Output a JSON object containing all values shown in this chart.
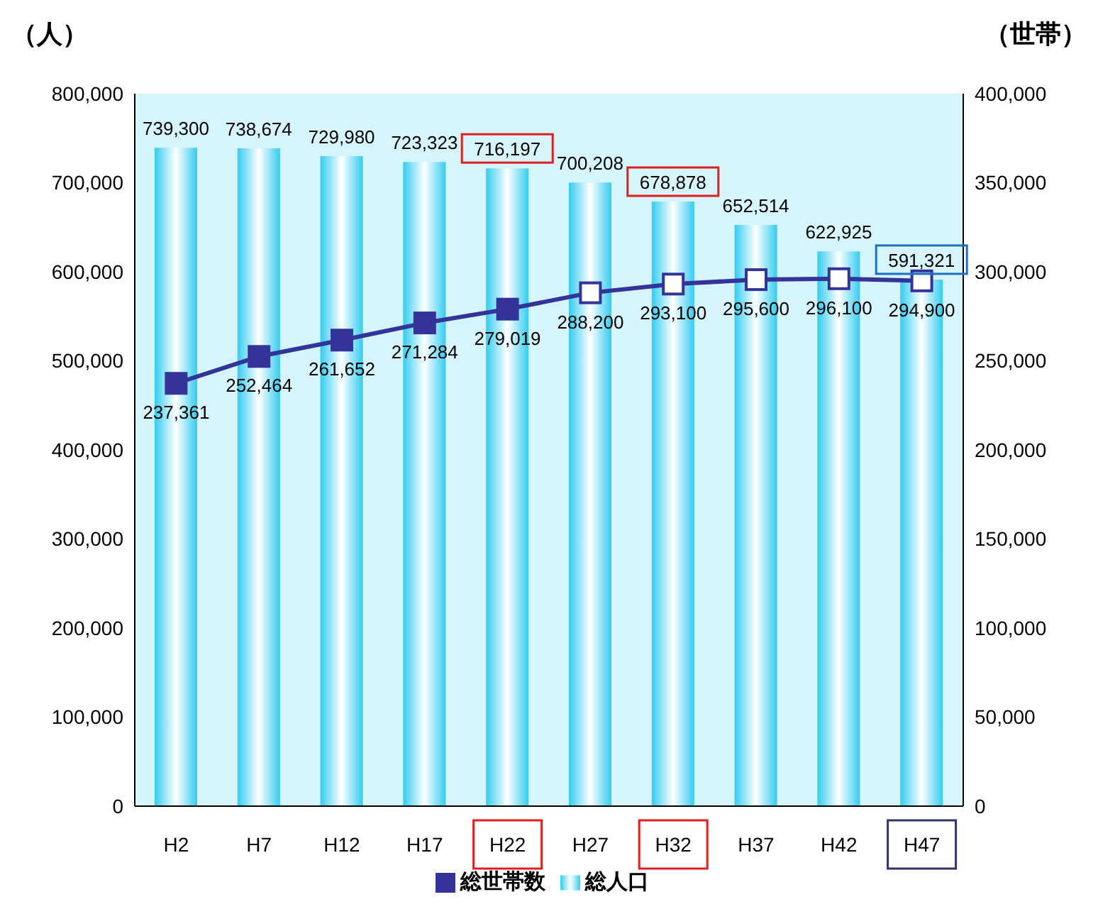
{
  "chart_data": {
    "type": "bar",
    "ylabel": "（人）",
    "y2label": "（世帯）",
    "categories": [
      "H2",
      "H7",
      "H12",
      "H17",
      "H22",
      "H27",
      "H32",
      "H37",
      "H42",
      "H47"
    ],
    "series": [
      {
        "name": "総人口",
        "color": "#33ccf0",
        "values": [
          739300,
          738674,
          729980,
          723323,
          716197,
          700208,
          678878,
          652514,
          622925,
          591321
        ],
        "value_labels": [
          "739,300",
          "738,674",
          "729,980",
          "723,323",
          "716,197",
          "700,208",
          "678,878",
          "652,514",
          "622,925",
          "591,321"
        ]
      },
      {
        "name": "総世帯数",
        "type": "line",
        "axis": "y2",
        "color": "#333399",
        "colors": [
          "#333399",
          "#333399",
          "#333399",
          "#333399",
          "#333399",
          "#ffffff",
          "#ffffff",
          "#ffffff",
          "#ffffff",
          "#ffffff"
        ],
        "values": [
          237361,
          252464,
          261652,
          271284,
          279019,
          288200,
          293100,
          295600,
          296100,
          294900
        ],
        "value_labels": [
          "237,361",
          "252,464",
          "261,652",
          "271,284",
          "279,019",
          "288,200",
          "293,100",
          "295,600",
          "296,100",
          "294,900"
        ]
      }
    ],
    "ylim": [
      0,
      800000
    ],
    "yticks": [
      0,
      {
        "value": 100000,
        "label": "100,000"
      },
      {
        "value": 200000,
        "label": "200,000"
      },
      {
        "value": 300000,
        "label": "300,000"
      },
      {
        "value": 400000,
        "label": "400,000"
      },
      {
        "value": 500000,
        "label": "500,000"
      },
      {
        "value": 600000,
        "label": "600,000"
      },
      {
        "value": 700000,
        "label": "700,000"
      },
      {
        "value": 800000,
        "label": "800,000"
      }
    ],
    "y2lim": [
      0,
      400000
    ],
    "y2ticks": [
      0,
      {
        "value": 50000,
        "label": "50,000"
      },
      {
        "value": 100000,
        "label": "100,000"
      },
      {
        "value": 150000,
        "label": "150,000"
      },
      {
        "value": 200000,
        "label": "200,000"
      },
      {
        "value": 250000,
        "label": "250,000"
      },
      {
        "value": 300000,
        "label": "300,000"
      },
      {
        "value": 350000,
        "label": "350,000"
      },
      {
        "value": 400000,
        "label": "400,000"
      }
    ],
    "marker": "square",
    "legend": "bottom",
    "grid": false
  }
}
